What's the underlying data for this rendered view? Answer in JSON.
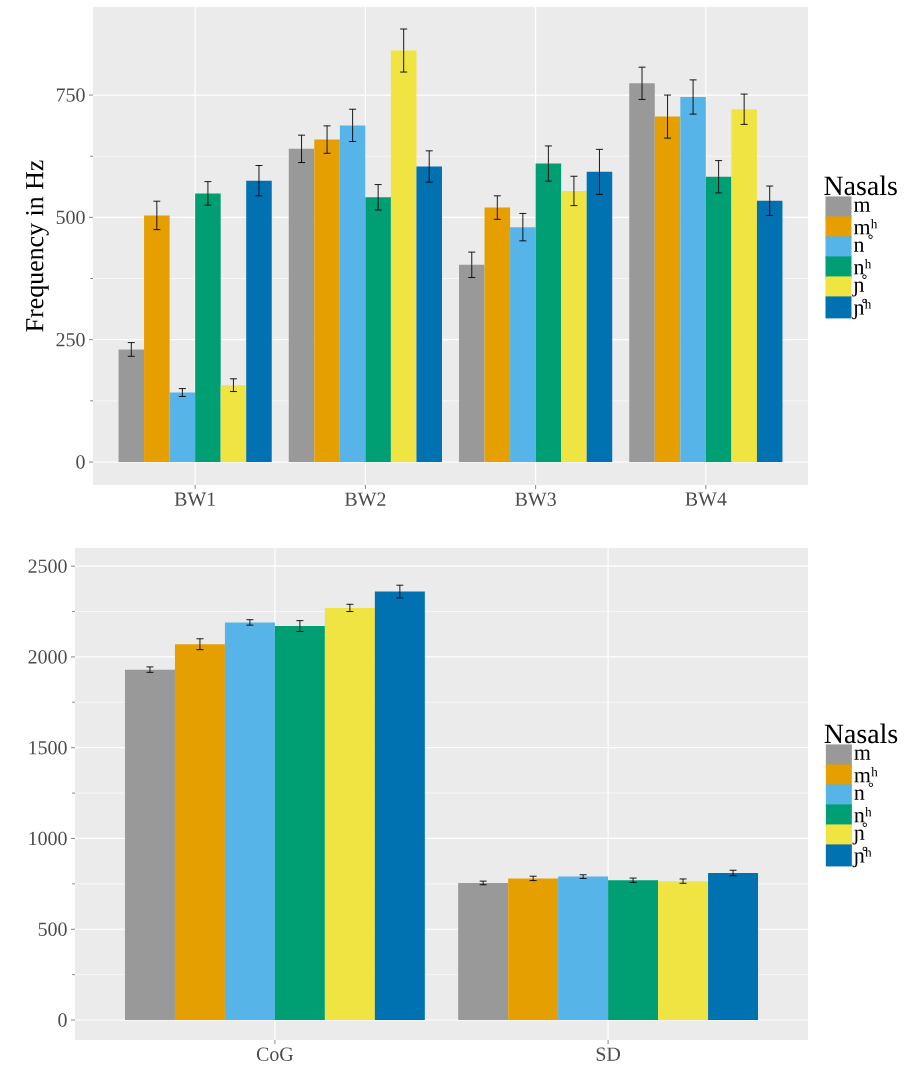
{
  "chart_data": [
    {
      "type": "bar",
      "ylabel": "Frequency in Hz",
      "legend_title": "Nasals",
      "legend": "right",
      "grid": true,
      "categories": [
        "BW1",
        "BW2",
        "BW3",
        "BW4"
      ],
      "ylim": [
        -47,
        930
      ],
      "yticks": [
        0,
        250,
        500,
        750
      ],
      "series": [
        {
          "name": "m",
          "color": "#999999",
          "values": [
            230,
            640,
            403,
            774
          ],
          "errors": [
            14,
            28,
            26,
            33
          ]
        },
        {
          "name": "m̥ʰ",
          "color": "#e69f00",
          "values": [
            504,
            659,
            520,
            706
          ],
          "errors": [
            29,
            28,
            24,
            44
          ]
        },
        {
          "name": "n",
          "color": "#56b4e9",
          "values": [
            142,
            688,
            480,
            746
          ],
          "errors": [
            8,
            33,
            28,
            35
          ]
        },
        {
          "name": "n̥ʰ",
          "color": "#009e73",
          "values": [
            549,
            541,
            610,
            583
          ],
          "errors": [
            24,
            26,
            36,
            33
          ]
        },
        {
          "name": "ɲ",
          "color": "#f0e442",
          "values": [
            157,
            841,
            554,
            721
          ],
          "errors": [
            13,
            44,
            30,
            31
          ]
        },
        {
          "name": "ɲ̊ʰ",
          "color": "#0072b2",
          "values": [
            575,
            604,
            593,
            534
          ],
          "errors": [
            31,
            32,
            46,
            30
          ]
        }
      ]
    },
    {
      "type": "bar",
      "legend_title": "Nasals",
      "legend": "right",
      "grid": true,
      "categories": [
        "CoG",
        "SD"
      ],
      "ylim": [
        -110,
        2600
      ],
      "yticks": [
        0,
        500,
        1000,
        1500,
        2000,
        2500
      ],
      "series": [
        {
          "name": "m",
          "color": "#999999",
          "values": [
            1930,
            755
          ],
          "errors": [
            15,
            10
          ]
        },
        {
          "name": "m̥ʰ",
          "color": "#e69f00",
          "values": [
            2070,
            780
          ],
          "errors": [
            30,
            12
          ]
        },
        {
          "name": "n",
          "color": "#56b4e9",
          "values": [
            2190,
            790
          ],
          "errors": [
            15,
            10
          ]
        },
        {
          "name": "n̥ʰ",
          "color": "#009e73",
          "values": [
            2170,
            770
          ],
          "errors": [
            30,
            12
          ]
        },
        {
          "name": "ɲ",
          "color": "#f0e442",
          "values": [
            2270,
            765
          ],
          "errors": [
            20,
            12
          ]
        },
        {
          "name": "ɲ̊ʰ",
          "color": "#0072b2",
          "values": [
            2360,
            810
          ],
          "errors": [
            35,
            15
          ]
        }
      ]
    }
  ]
}
